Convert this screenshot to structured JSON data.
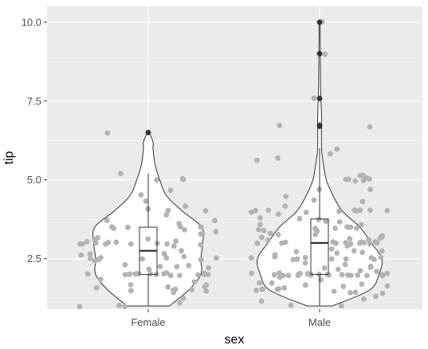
{
  "chart_data": {
    "type": "violin",
    "xlabel": "sex",
    "ylabel": "tip",
    "categories": [
      "Female",
      "Male"
    ],
    "ylim": [
      0.9,
      10.5
    ],
    "yticks": [
      2.5,
      5.0,
      7.5,
      10.0
    ],
    "ytick_labels": [
      "2.5",
      "5.0",
      "7.5",
      "10.0"
    ],
    "grid": true,
    "legend": "none",
    "colors": {
      "panel_bg": "#ebebeb",
      "grid": "#ffffff",
      "violin_fill": "#ffffff",
      "violin_stroke": "#333333",
      "points": "#b3b3b3",
      "outliers": "#333333"
    },
    "violins": [
      {
        "category": "Female",
        "profile": [
          [
            1.0,
            0.22
          ],
          [
            1.5,
            0.42
          ],
          [
            2.0,
            0.55
          ],
          [
            2.5,
            0.55
          ],
          [
            3.0,
            0.57
          ],
          [
            3.5,
            0.56
          ],
          [
            4.0,
            0.36
          ],
          [
            4.5,
            0.19
          ],
          [
            5.0,
            0.12
          ],
          [
            5.5,
            0.07
          ],
          [
            6.0,
            0.05
          ],
          [
            6.2,
            0.05
          ],
          [
            6.5,
            0.01
          ]
        ]
      },
      {
        "category": "Male",
        "profile": [
          [
            1.0,
            0.13
          ],
          [
            1.5,
            0.52
          ],
          [
            2.0,
            0.62
          ],
          [
            2.5,
            0.65
          ],
          [
            3.0,
            0.54
          ],
          [
            3.5,
            0.42
          ],
          [
            4.0,
            0.24
          ],
          [
            4.5,
            0.14
          ],
          [
            5.0,
            0.07
          ],
          [
            5.5,
            0.04
          ],
          [
            6.0,
            0.02
          ],
          [
            7.0,
            0.02
          ],
          [
            8.0,
            0.01
          ],
          [
            10.0,
            0.005
          ]
        ]
      }
    ],
    "boxplots": [
      {
        "category": "Female",
        "min": 1.0,
        "q1": 2.0,
        "median": 2.75,
        "q3": 3.5,
        "max": 5.2,
        "outliers": [
          6.5
        ]
      },
      {
        "category": "Male",
        "min": 1.0,
        "q1": 2.0,
        "median": 3.0,
        "q3": 3.76,
        "max": 6.0,
        "outliers": [
          6.7,
          6.73,
          7.58,
          9.0,
          10.0
        ]
      }
    ],
    "points": [
      {
        "category": "Female",
        "y": [
          1.01,
          1.0,
          1.1,
          1.0,
          1.25,
          1.44,
          1.5,
          1.5,
          1.5,
          1.5,
          1.5,
          1.58,
          1.68,
          1.61,
          1.64,
          1.66,
          1.75,
          1.83,
          2.0,
          2.0,
          2.0,
          2.0,
          2.0,
          2.0,
          2.0,
          2.0,
          2.0,
          2.0,
          2.0,
          2.0,
          2.0,
          2.0,
          2.0,
          2.0,
          2.05,
          2.18,
          2.2,
          2.23,
          2.24,
          2.3,
          2.31,
          2.45,
          2.5,
          2.5,
          2.5,
          2.5,
          2.5,
          2.5,
          2.5,
          2.5,
          2.55,
          2.6,
          2.61,
          2.64,
          2.75,
          2.88,
          2.92,
          3.0,
          3.0,
          3.0,
          3.0,
          3.0,
          3.0,
          3.0,
          3.0,
          3.02,
          3.06,
          3.07,
          3.09,
          3.14,
          3.18,
          3.25,
          3.31,
          3.39,
          3.41,
          3.48,
          3.5,
          3.5,
          3.5,
          3.5,
          3.5,
          3.61,
          3.7,
          3.75,
          3.92,
          4.0,
          4.0,
          4.08,
          4.2,
          4.3,
          4.5,
          4.67,
          5.0,
          5.0,
          5.0,
          5.2,
          6.5
        ]
      },
      {
        "category": "Male",
        "y": [
          1.0,
          1.0,
          1.17,
          1.25,
          1.32,
          1.36,
          1.44,
          1.45,
          1.47,
          1.5,
          1.5,
          1.5,
          1.5,
          1.56,
          1.57,
          1.63,
          1.64,
          1.66,
          1.71,
          1.73,
          1.76,
          1.8,
          1.92,
          1.96,
          1.98,
          2.0,
          2.0,
          2.0,
          2.0,
          2.0,
          2.0,
          2.0,
          2.0,
          2.0,
          2.0,
          2.0,
          2.0,
          2.0,
          2.0,
          2.0,
          2.0,
          2.0,
          2.0,
          2.0,
          2.0,
          2.0,
          2.01,
          2.03,
          2.09,
          2.12,
          2.18,
          2.2,
          2.23,
          2.24,
          2.31,
          2.34,
          2.47,
          2.5,
          2.5,
          2.5,
          2.5,
          2.5,
          2.5,
          2.52,
          2.54,
          2.56,
          2.6,
          2.64,
          2.71,
          2.72,
          2.74,
          2.75,
          2.83,
          2.92,
          3.0,
          3.0,
          3.0,
          3.0,
          3.0,
          3.0,
          3.0,
          3.0,
          3.0,
          3.0,
          3.0,
          3.0,
          3.0,
          3.0,
          3.08,
          3.11,
          3.12,
          3.15,
          3.16,
          3.18,
          3.21,
          3.23,
          3.27,
          3.29,
          3.35,
          3.39,
          3.4,
          3.48,
          3.5,
          3.5,
          3.5,
          3.5,
          3.5,
          3.55,
          3.6,
          3.66,
          3.68,
          3.71,
          3.76,
          3.76,
          3.92,
          4.0,
          4.0,
          4.0,
          4.0,
          4.0,
          4.0,
          4.0,
          4.0,
          4.0,
          4.06,
          4.19,
          4.3,
          4.34,
          4.5,
          4.71,
          4.73,
          5.0,
          5.0,
          5.0,
          5.0,
          5.0,
          5.07,
          5.14,
          5.16,
          5.6,
          5.65,
          5.85,
          6.0,
          6.7,
          6.73,
          7.58,
          9.0,
          10.0
        ]
      }
    ]
  }
}
